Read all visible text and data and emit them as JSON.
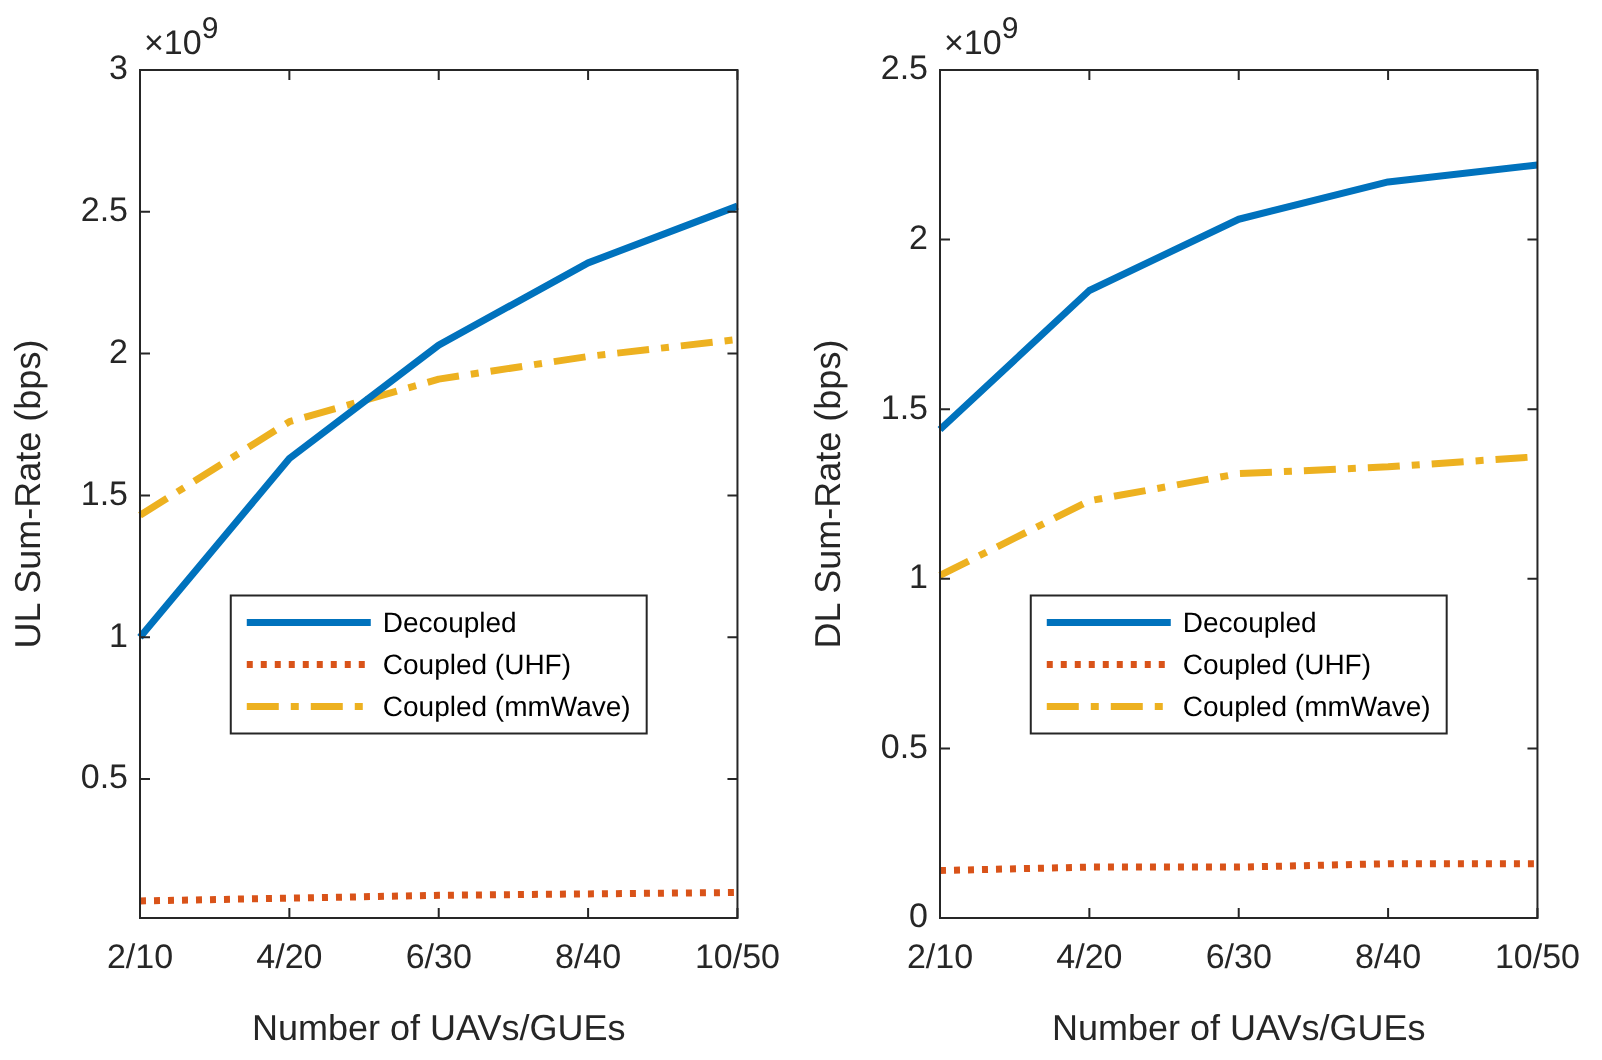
{
  "chart_data": [
    {
      "type": "line",
      "xlabel": "Number of UAVs/GUEs",
      "ylabel": "UL Sum-Rate (bps)",
      "categories": [
        "2/10",
        "4/20",
        "6/30",
        "8/40",
        "10/50"
      ],
      "ylim": [
        0.01,
        3
      ],
      "yticks": [
        0.5,
        1,
        1.5,
        2,
        2.5,
        3
      ],
      "grid": false,
      "legend": "bottom",
      "marker": "none",
      "annotations": [
        "×10$^{9}$"
      ],
      "series": [
        {
          "name": "Decoupled",
          "color": "#0072bd",
          "line_style": "solid",
          "values": [
            1.0,
            1.63,
            2.03,
            2.32,
            2.52
          ]
        },
        {
          "name": "Coupled (UHF)",
          "color": "#d95319",
          "line_style": "dotted",
          "values": [
            0.07,
            0.08,
            0.09,
            0.095,
            0.1
          ]
        },
        {
          "name": "Coupled (mmWave)",
          "color": "#edb120",
          "line_style": "dashed",
          "values": [
            1.43,
            1.76,
            1.91,
            1.99,
            2.05
          ]
        }
      ]
    },
    {
      "type": "line",
      "xlabel": "Number of UAVs/GUEs",
      "ylabel": "DL Sum-Rate (bps)",
      "categories": [
        "2/10",
        "4/20",
        "6/30",
        "8/40",
        "10/50"
      ],
      "ylim": [
        0,
        2.5
      ],
      "yticks": [
        0,
        0.5,
        1,
        1.5,
        2,
        2.5
      ],
      "grid": false,
      "legend": "bottom",
      "marker": "none",
      "annotations": [
        "×10$^{9}$"
      ],
      "series": [
        {
          "name": "Decoupled",
          "color": "#0072bd",
          "line_style": "solid",
          "values": [
            1.44,
            1.85,
            2.06,
            2.17,
            2.22
          ]
        },
        {
          "name": "Coupled (UHF)",
          "color": "#d95319",
          "line_style": "dotted",
          "values": [
            0.14,
            0.15,
            0.15,
            0.16,
            0.16
          ]
        },
        {
          "name": "Coupled (mmWave)",
          "color": "#edb120",
          "line_style": "dashed",
          "values": [
            1.01,
            1.23,
            1.31,
            1.33,
            1.36
          ]
        }
      ]
    }
  ]
}
